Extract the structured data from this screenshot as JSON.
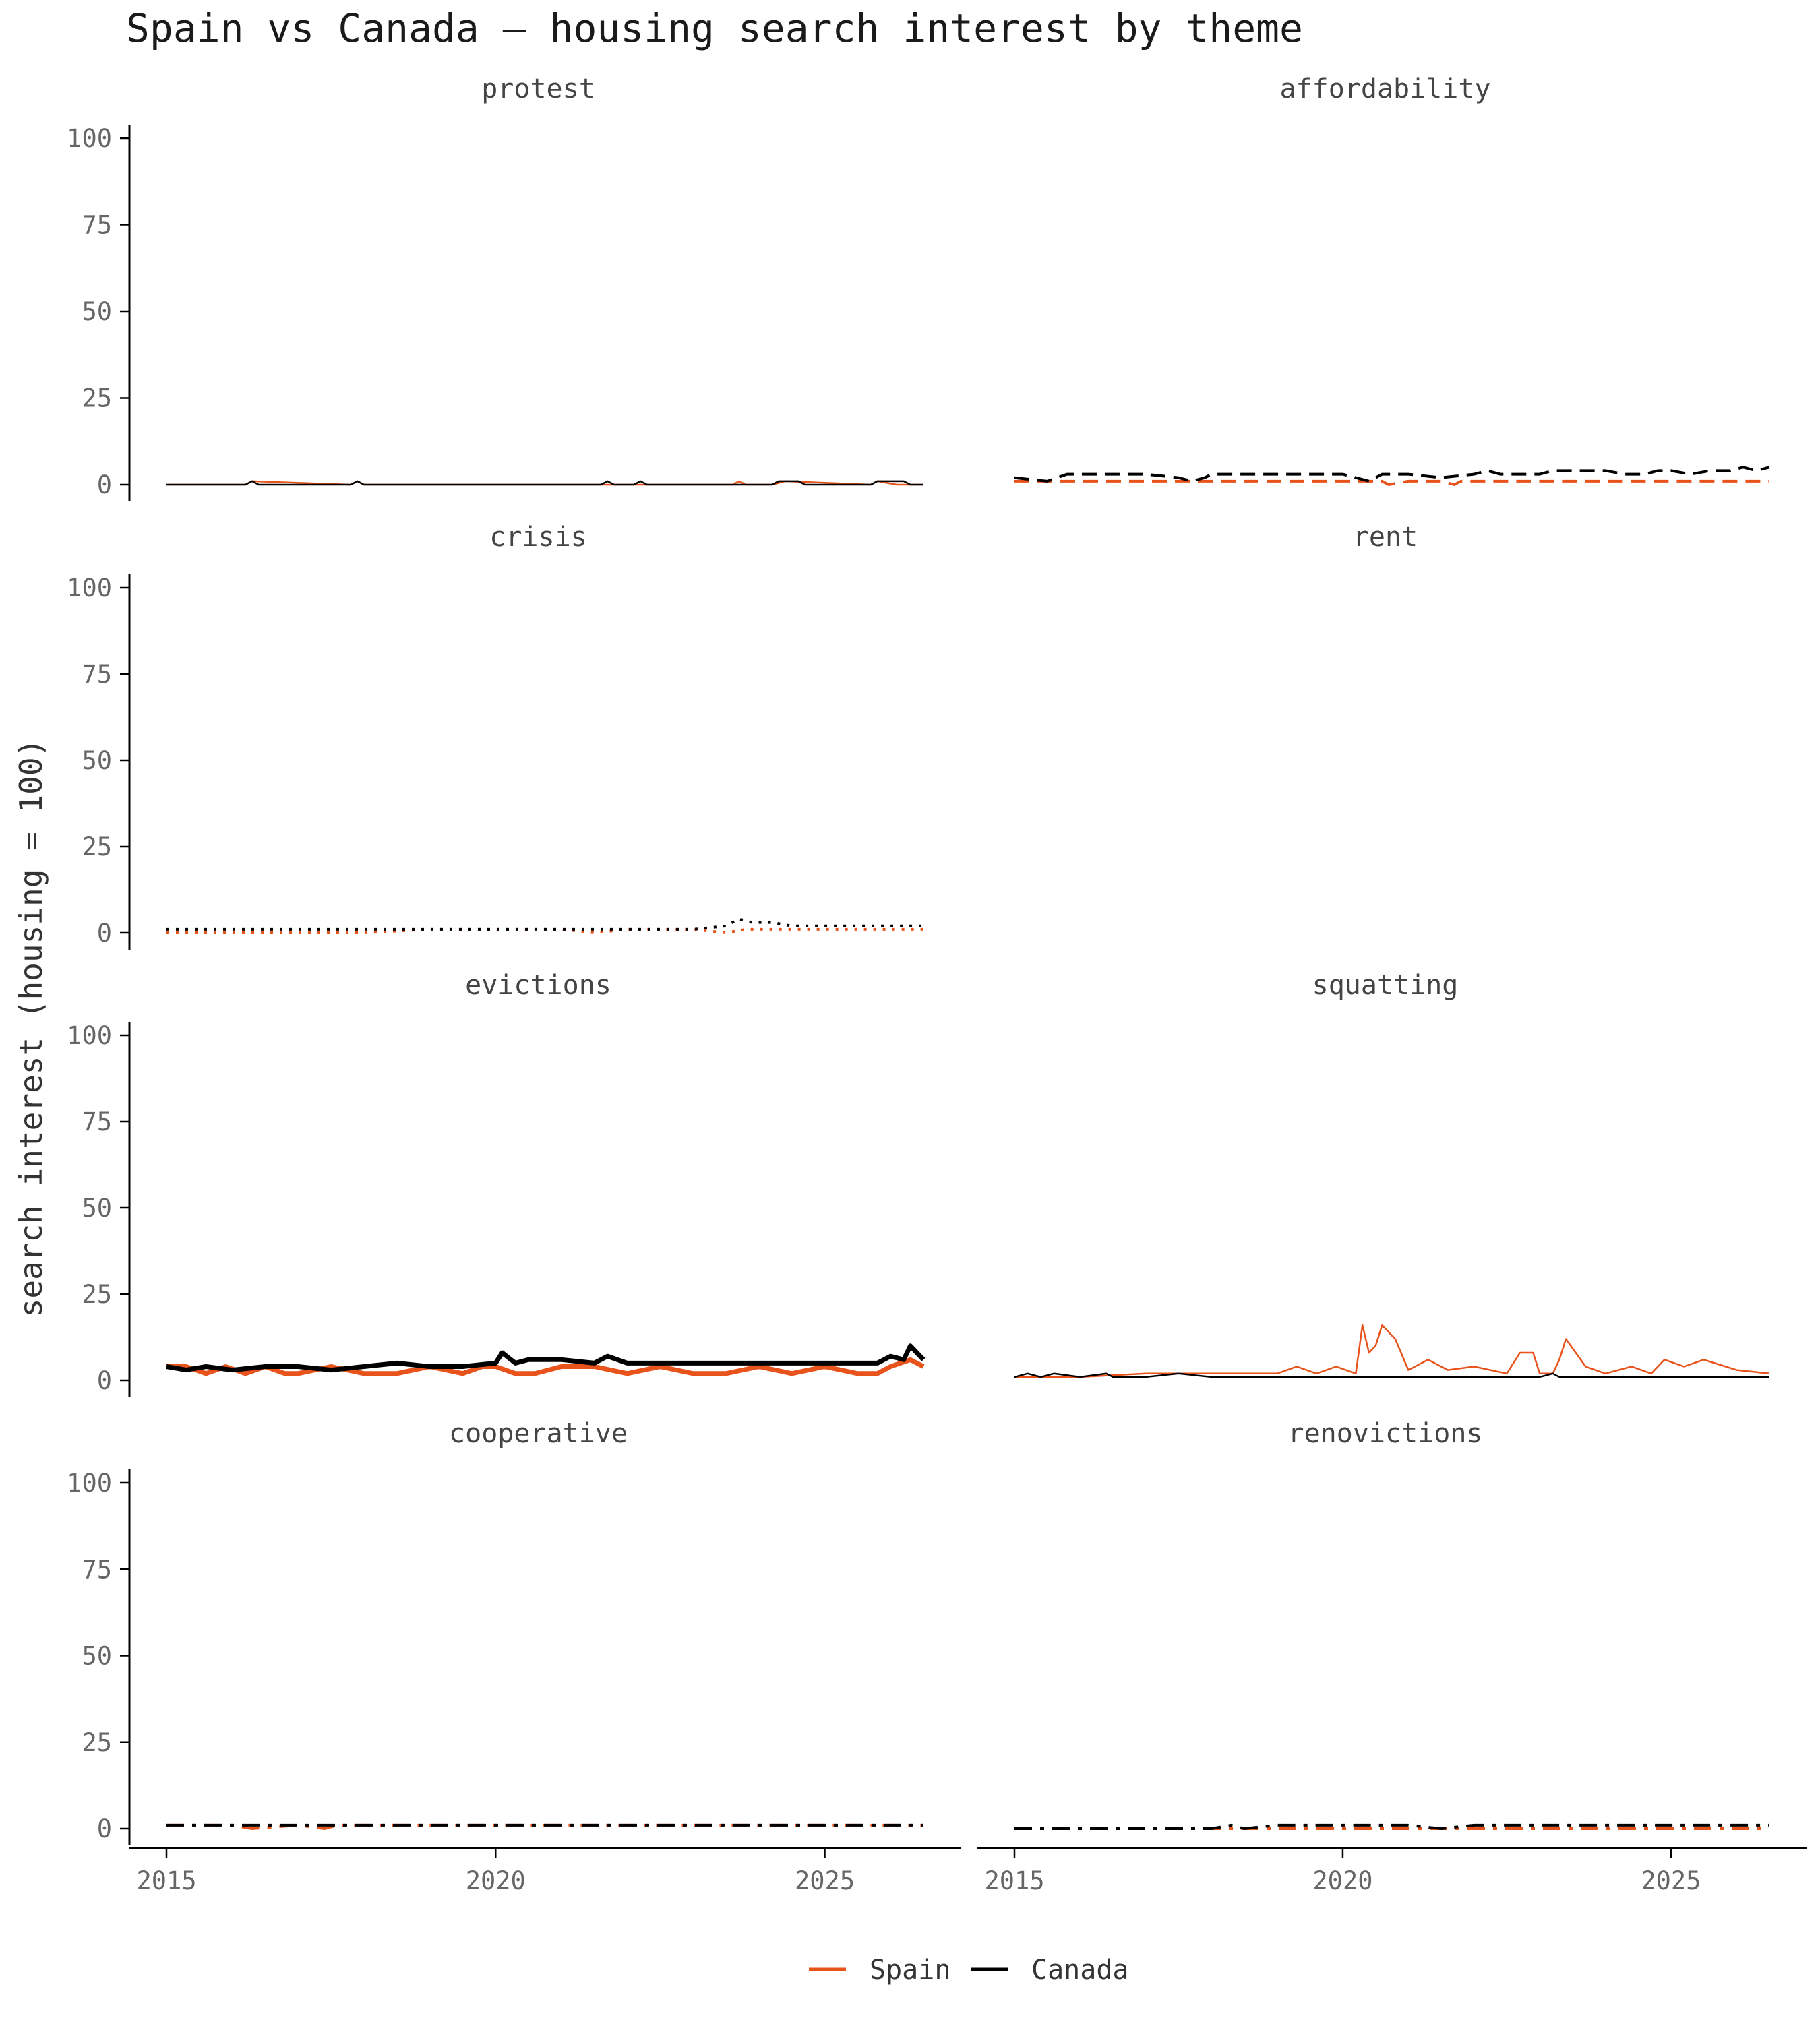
{
  "chart_data": {
    "type": "line",
    "title": "Spain vs Canada — housing search interest by theme",
    "ylabel": "search interest (housing = 100)",
    "xlabel": "",
    "ylim": [
      0,
      100
    ],
    "xlim": [
      2015,
      2026.5
    ],
    "x_ticks": [
      "2015",
      "2020",
      "2025"
    ],
    "y_ticks": [
      "0",
      "25",
      "50",
      "75",
      "100"
    ],
    "grid": false,
    "legend_position": "bottom",
    "legend": [
      {
        "name": "Spain",
        "color": "#e8531b"
      },
      {
        "name": "Canada",
        "color": "#000000"
      }
    ],
    "panels": [
      {
        "title": "protest",
        "linestyle": "solid",
        "linewidth": "thin",
        "series": [
          {
            "name": "Spain",
            "x": [
              2015,
              2016.2,
              2016.3,
              2017.8,
              2017.9,
              2018,
              2023.6,
              2023.7,
              2023.8,
              2024.2,
              2024.4,
              2025.7,
              2025.8,
              2026.1,
              2026.2,
              2026.5
            ],
            "values": [
              0,
              0,
              1,
              0,
              1,
              0,
              0,
              1,
              0,
              0,
              1,
              0,
              1,
              0,
              0,
              0
            ]
          },
          {
            "name": "Canada",
            "x": [
              2015,
              2016.2,
              2016.3,
              2016.4,
              2017.8,
              2017.9,
              2018,
              2021.6,
              2021.7,
              2021.8,
              2022.1,
              2022.2,
              2022.3,
              2024.2,
              2024.3,
              2024.6,
              2024.7,
              2025.7,
              2025.8,
              2026.2,
              2026.3,
              2026.5
            ],
            "values": [
              0,
              0,
              1,
              0,
              0,
              1,
              0,
              0,
              1,
              0,
              0,
              1,
              0,
              0,
              1,
              1,
              0,
              0,
              1,
              1,
              0,
              0
            ]
          }
        ]
      },
      {
        "title": "affordability",
        "linestyle": "dashed",
        "linewidth": "medium",
        "series": [
          {
            "name": "Spain",
            "x": [
              2015,
              2016,
              2017,
              2018,
              2019,
              2020,
              2020.6,
              2020.7,
              2021,
              2021.5,
              2021.7,
              2021.8,
              2022,
              2023,
              2024,
              2025,
              2026,
              2026.5
            ],
            "values": [
              1,
              1,
              1,
              1,
              1,
              1,
              1,
              0,
              1,
              1,
              0,
              1,
              1,
              1,
              1,
              1,
              1,
              1
            ]
          },
          {
            "name": "Canada",
            "x": [
              2015,
              2015.5,
              2015.8,
              2016,
              2016.5,
              2017,
              2017.5,
              2017.7,
              2017.9,
              2018,
              2019,
              2020,
              2020.2,
              2020.4,
              2020.6,
              2021,
              2021.5,
              2022,
              2022.2,
              2022.4,
              2023,
              2023.2,
              2024,
              2024.3,
              2024.6,
              2024.8,
              2025,
              2025.3,
              2025.6,
              2025.9,
              2026.1,
              2026.3,
              2026.5
            ],
            "values": [
              2,
              1,
              3,
              3,
              3,
              3,
              2,
              1,
              2,
              3,
              3,
              3,
              2,
              1,
              3,
              3,
              2,
              3,
              4,
              3,
              3,
              4,
              4,
              3,
              3,
              4,
              4,
              3,
              4,
              4,
              5,
              4,
              5
            ]
          }
        ]
      },
      {
        "title": "crisis",
        "linestyle": "dotted",
        "linewidth": "medium",
        "series": [
          {
            "name": "Spain",
            "x": [
              2015,
              2016,
              2017,
              2018,
              2019,
              2020,
              2021,
              2021.5,
              2022,
              2023,
              2023.5,
              2023.8,
              2024,
              2025,
              2026,
              2026.5
            ],
            "values": [
              0,
              0,
              0,
              0,
              1,
              1,
              1,
              0,
              1,
              1,
              0,
              1,
              1,
              1,
              1,
              1
            ]
          },
          {
            "name": "Canada",
            "x": [
              2015,
              2016,
              2017,
              2018,
              2019,
              2020,
              2021,
              2022,
              2023,
              2023.5,
              2023.7,
              2023.9,
              2024.2,
              2024.5,
              2025,
              2025.5,
              2026,
              2026.5
            ],
            "values": [
              1,
              1,
              1,
              1,
              1,
              1,
              1,
              1,
              1,
              2,
              4,
              3,
              3,
              2,
              2,
              2,
              2,
              2
            ]
          }
        ]
      },
      {
        "title": "rent",
        "linestyle": "solid",
        "linewidth": "thin",
        "series": []
      },
      {
        "title": "evictions",
        "linestyle": "solid",
        "linewidth": "thick",
        "series": [
          {
            "name": "Spain",
            "x": [
              2015,
              2015.3,
              2015.6,
              2015.9,
              2016.2,
              2016.5,
              2016.8,
              2017,
              2017.5,
              2018,
              2018.5,
              2019,
              2019.5,
              2019.8,
              2020,
              2020.3,
              2020.6,
              2021,
              2021.5,
              2022,
              2022.5,
              2023,
              2023.5,
              2024,
              2024.5,
              2025,
              2025.5,
              2025.8,
              2026,
              2026.3,
              2026.5
            ],
            "values": [
              4,
              4,
              2,
              4,
              2,
              4,
              2,
              2,
              4,
              2,
              2,
              4,
              2,
              4,
              4,
              2,
              2,
              4,
              4,
              2,
              4,
              2,
              2,
              4,
              2,
              4,
              2,
              2,
              4,
              6,
              4
            ]
          },
          {
            "name": "Canada",
            "x": [
              2015,
              2015.3,
              2015.6,
              2016,
              2016.5,
              2017,
              2017.5,
              2018,
              2018.5,
              2019,
              2019.5,
              2020,
              2020.1,
              2020.3,
              2020.5,
              2021,
              2021.5,
              2021.7,
              2022,
              2022.5,
              2023,
              2023.5,
              2024,
              2024.5,
              2025,
              2025.5,
              2025.8,
              2026,
              2026.2,
              2026.3,
              2026.5
            ],
            "values": [
              4,
              3,
              4,
              3,
              4,
              4,
              3,
              4,
              5,
              4,
              4,
              5,
              8,
              5,
              6,
              6,
              5,
              7,
              5,
              5,
              5,
              5,
              5,
              5,
              5,
              5,
              5,
              7,
              6,
              10,
              6
            ]
          }
        ]
      },
      {
        "title": "squatting",
        "linestyle": "solid",
        "linewidth": "thin",
        "series": [
          {
            "name": "Spain",
            "x": [
              2015,
              2016,
              2017,
              2018,
              2019,
              2019.3,
              2019.6,
              2019.9,
              2020.2,
              2020.3,
              2020.4,
              2020.5,
              2020.6,
              2020.8,
              2021,
              2021.3,
              2021.6,
              2022,
              2022.5,
              2022.7,
              2022.9,
              2023,
              2023.2,
              2023.3,
              2023.4,
              2023.7,
              2024,
              2024.4,
              2024.7,
              2024.9,
              2025.2,
              2025.5,
              2026,
              2026.5
            ],
            "values": [
              1,
              1,
              2,
              2,
              2,
              4,
              2,
              4,
              2,
              16,
              8,
              10,
              16,
              12,
              3,
              6,
              3,
              4,
              2,
              8,
              8,
              2,
              2,
              6,
              12,
              4,
              2,
              4,
              2,
              6,
              4,
              6,
              3,
              2
            ]
          },
          {
            "name": "Canada",
            "x": [
              2015,
              2015.2,
              2015.4,
              2015.6,
              2016,
              2016.4,
              2016.5,
              2017,
              2017.5,
              2018,
              2019,
              2020,
              2021,
              2022,
              2023,
              2023.2,
              2023.3,
              2024,
              2025,
              2026,
              2026.5
            ],
            "values": [
              1,
              2,
              1,
              2,
              1,
              2,
              1,
              1,
              2,
              1,
              1,
              1,
              1,
              1,
              1,
              2,
              1,
              1,
              1,
              1,
              1
            ]
          }
        ]
      },
      {
        "title": "cooperative",
        "linestyle": "dashdot",
        "linewidth": "medium",
        "series": [
          {
            "name": "Spain",
            "x": [
              2015,
              2016,
              2016.3,
              2017,
              2017.4,
              2017.6,
              2018,
              2019,
              2020,
              2021,
              2022,
              2023,
              2024,
              2025,
              2026,
              2026.5
            ],
            "values": [
              1,
              1,
              0,
              1,
              0,
              1,
              1,
              1,
              1,
              1,
              1,
              1,
              1,
              1,
              1,
              1
            ]
          },
          {
            "name": "Canada",
            "x": [
              2015,
              2016,
              2017,
              2018,
              2019,
              2020,
              2021,
              2022,
              2023,
              2024,
              2025,
              2026,
              2026.5
            ],
            "values": [
              1,
              1,
              1,
              1,
              1,
              1,
              1,
              1,
              1,
              1,
              1,
              1,
              1
            ]
          }
        ]
      },
      {
        "title": "renovictions",
        "linestyle": "dashdot",
        "linewidth": "medium",
        "series": [
          {
            "name": "Spain",
            "x": [
              2015,
              2026.5
            ],
            "values": [
              0,
              0
            ]
          },
          {
            "name": "Canada",
            "x": [
              2015,
              2016,
              2017,
              2018,
              2018.3,
              2018.5,
              2019,
              2020,
              2021,
              2021.5,
              2022,
              2023,
              2024,
              2025,
              2026,
              2026.5
            ],
            "values": [
              0,
              0,
              0,
              0,
              1,
              0,
              1,
              1,
              1,
              0,
              1,
              1,
              1,
              1,
              1,
              1
            ]
          }
        ]
      }
    ]
  }
}
